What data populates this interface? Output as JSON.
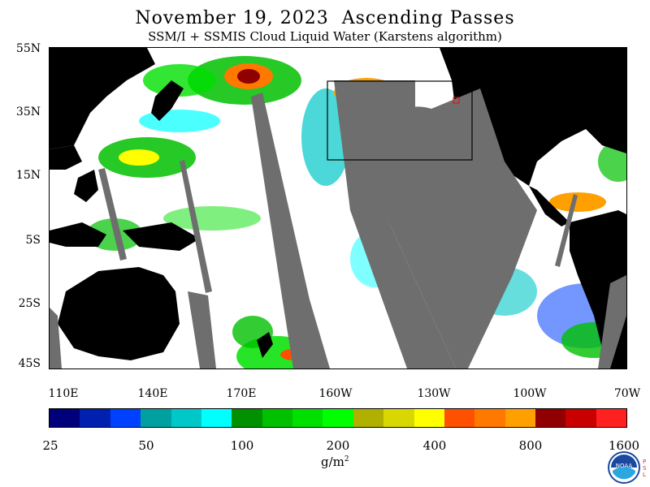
{
  "header": {
    "title": "November 19, 2023  Ascending Passes",
    "subtitle": "SSM/I + SSMIS Cloud Liquid Water (Karstens algorithm)"
  },
  "map": {
    "lat_labels": [
      "55N",
      "35N",
      "15N",
      "5S",
      "25S",
      "45S"
    ],
    "lon_labels": [
      "110E",
      "140E",
      "170E",
      "160W",
      "130W",
      "100W",
      "70W"
    ]
  },
  "colorbar": {
    "colors": [
      "#00007a",
      "#0020b0",
      "#0040ff",
      "#00a0a0",
      "#00c8c8",
      "#00ffff",
      "#009000",
      "#00c000",
      "#00e000",
      "#00ff00",
      "#b0b000",
      "#d8d800",
      "#ffff00",
      "#ff5000",
      "#ff7800",
      "#ffa000",
      "#900000",
      "#c80000",
      "#ff2020"
    ],
    "labels": [
      "25",
      "50",
      "100",
      "200",
      "400",
      "800",
      "1600"
    ],
    "units": "g/m",
    "units_sup": "2"
  },
  "logo": {
    "text": "NOAA",
    "side_text": "PSL"
  }
}
